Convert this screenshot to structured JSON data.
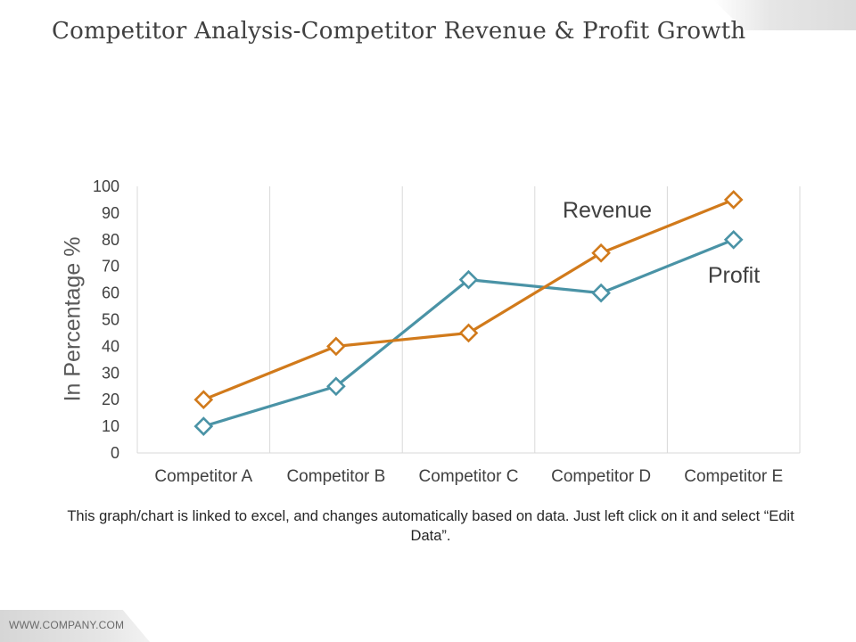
{
  "slide": {
    "title": "Competitor Analysis-Competitor Revenue & Profit Growth",
    "caption": "This graph/chart is linked to excel, and changes automatically based on data. Just left click on it and select “Edit Data”.",
    "footer": "WWW.COMPANY.COM"
  },
  "chart_data": {
    "type": "line",
    "title": "",
    "xlabel": "",
    "ylabel": "In Percentage %",
    "categories": [
      "Competitor A",
      "Competitor B",
      "Competitor C",
      "Competitor D",
      "Competitor E"
    ],
    "ylim": [
      0,
      100
    ],
    "yticks": [
      0,
      10,
      20,
      30,
      40,
      50,
      60,
      70,
      80,
      90,
      100
    ],
    "grid": "vertical",
    "markers": "diamond",
    "series": [
      {
        "name": "Revenue",
        "values": [
          20,
          40,
          45,
          75,
          95
        ],
        "color": "#D17A1B"
      },
      {
        "name": "Profit",
        "values": [
          10,
          25,
          65,
          60,
          80
        ],
        "color": "#4A93A6"
      }
    ]
  }
}
